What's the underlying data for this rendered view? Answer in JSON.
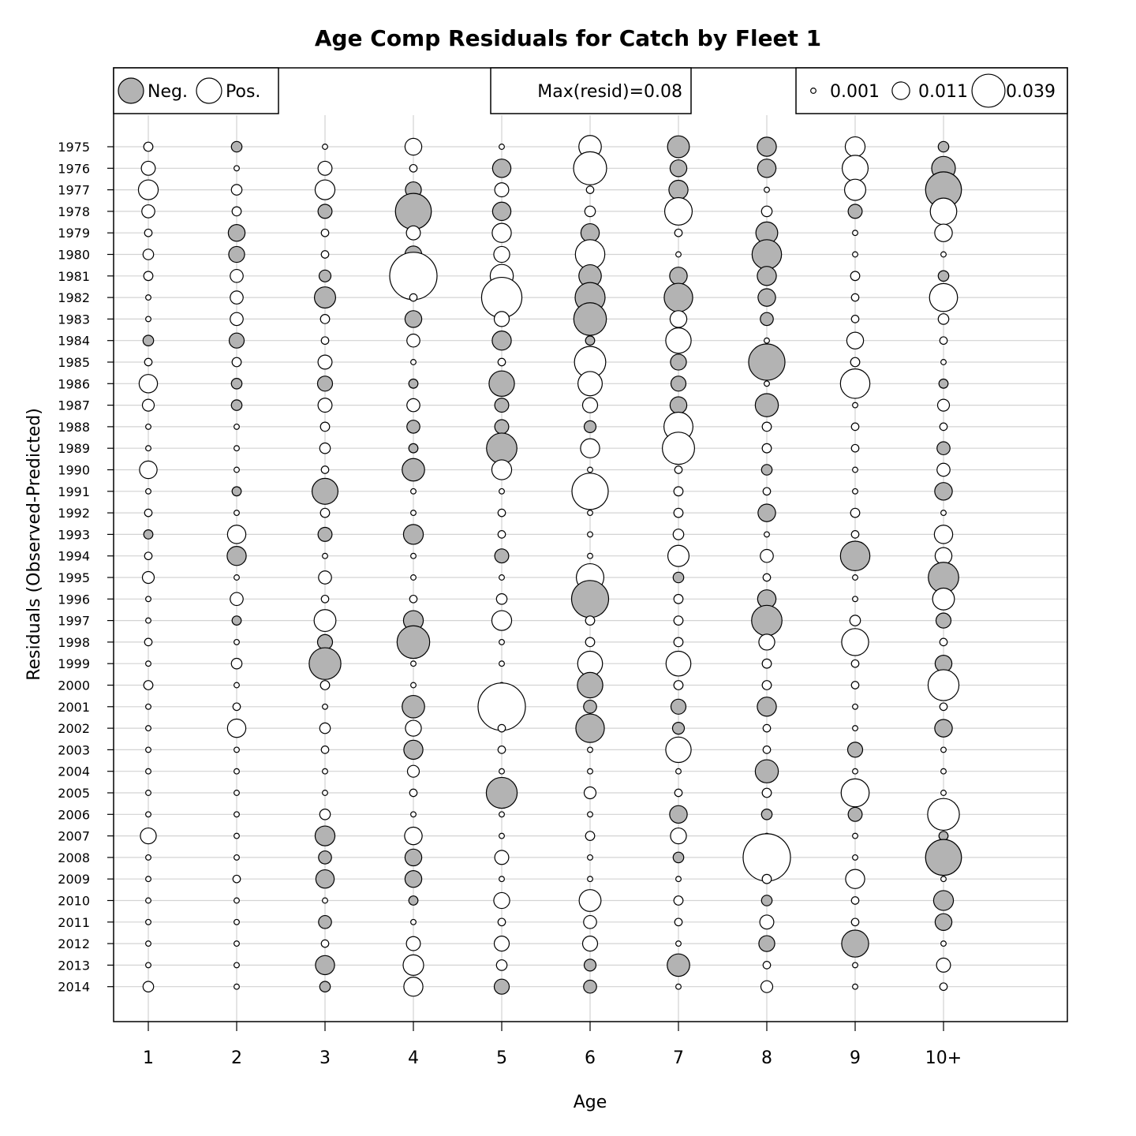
{
  "chart_data": {
    "type": "bubble",
    "title": "Age Comp Residuals for Catch by Fleet 1",
    "xlabel": "Age",
    "ylabel": "Residuals (Observed-Predicted)",
    "categories": [
      "1",
      "2",
      "3",
      "4",
      "5",
      "6",
      "7",
      "8",
      "9",
      "10+"
    ],
    "years": [
      "1975",
      "1976",
      "1977",
      "1978",
      "1979",
      "1980",
      "1981",
      "1982",
      "1983",
      "1984",
      "1985",
      "1986",
      "1987",
      "1988",
      "1989",
      "1990",
      "1991",
      "1992",
      "1993",
      "1994",
      "1995",
      "1996",
      "1997",
      "1998",
      "1999",
      "2000",
      "2001",
      "2002",
      "2003",
      "2004",
      "2005",
      "2006",
      "2007",
      "2008",
      "2009",
      "2010",
      "2011",
      "2012",
      "2013",
      "2014"
    ],
    "grid": true,
    "legend_sign": {
      "neg_label": "Neg.",
      "pos_label": "Pos.",
      "neg_color": "#b3b3b3",
      "pos_color": "#ffffff"
    },
    "legend_max": "Max(resid)=0.08",
    "legend_sizes": [
      {
        "label": "0.001",
        "value": 0.001
      },
      {
        "label": "0.011",
        "value": 0.011
      },
      {
        "label": "0.039",
        "value": 0.039
      }
    ],
    "values": [
      [
        0.003,
        -0.004,
        0.001,
        0.01,
        0.001,
        0.018,
        -0.017,
        -0.013,
        0.014,
        -0.004
      ],
      [
        0.007,
        0.001,
        0.007,
        0.002,
        -0.012,
        0.039,
        -0.01,
        -0.012,
        0.024,
        -0.02
      ],
      [
        0.014,
        0.004,
        0.014,
        -0.009,
        0.007,
        0.002,
        -0.013,
        0.001,
        0.016,
        -0.046
      ],
      [
        0.006,
        0.003,
        -0.007,
        -0.046,
        -0.012,
        0.004,
        0.027,
        0.004,
        -0.007,
        0.025
      ],
      [
        0.002,
        -0.01,
        0.002,
        0.007,
        0.013,
        -0.012,
        0.002,
        -0.017,
        0.001,
        0.011
      ],
      [
        0.004,
        -0.009,
        0.002,
        -0.01,
        0.009,
        0.031,
        0.001,
        -0.031,
        0.001,
        0.001
      ],
      [
        0.003,
        0.006,
        -0.005,
        0.08,
        0.019,
        -0.018,
        -0.011,
        -0.013,
        0.003,
        -0.004
      ],
      [
        0.001,
        0.006,
        -0.016,
        0.002,
        0.058,
        -0.032,
        -0.029,
        -0.011,
        0.002,
        0.028
      ],
      [
        0.001,
        0.006,
        0.003,
        -0.01,
        0.008,
        -0.038,
        0.01,
        -0.006,
        0.002,
        0.004
      ],
      [
        -0.004,
        -0.008,
        0.002,
        0.006,
        -0.013,
        -0.003,
        0.023,
        0.001,
        0.01,
        0.002
      ],
      [
        0.002,
        0.003,
        0.007,
        0.001,
        0.002,
        0.035,
        -0.009,
        -0.047,
        0.003,
        0.001
      ],
      [
        0.012,
        -0.004,
        -0.008,
        -0.003,
        -0.023,
        0.021,
        -0.008,
        0.001,
        0.031,
        -0.003
      ],
      [
        0.005,
        -0.004,
        0.007,
        0.006,
        -0.007,
        0.008,
        -0.01,
        -0.019,
        0.001,
        0.005
      ],
      [
        0.001,
        0.001,
        0.003,
        -0.006,
        -0.007,
        -0.005,
        0.03,
        0.003,
        0.002,
        0.002
      ],
      [
        0.001,
        0.001,
        0.004,
        -0.003,
        -0.033,
        0.013,
        0.037,
        0.003,
        0.002,
        -0.006
      ],
      [
        0.011,
        0.001,
        0.002,
        -0.018,
        0.014,
        0.001,
        0.002,
        -0.004,
        0.001,
        0.006
      ],
      [
        0.001,
        -0.003,
        -0.024,
        0.001,
        0.001,
        0.047,
        0.003,
        0.002,
        0.001,
        -0.011
      ],
      [
        0.002,
        0.001,
        0.003,
        0.001,
        0.002,
        0.001,
        0.003,
        -0.011,
        0.003,
        0.001
      ],
      [
        -0.003,
        0.012,
        -0.007,
        -0.014,
        0.002,
        0.001,
        0.004,
        0.001,
        0.002,
        0.012
      ],
      [
        0.002,
        -0.013,
        0.001,
        0.001,
        -0.007,
        0.001,
        0.016,
        0.006,
        -0.031,
        0.01
      ],
      [
        0.005,
        0.001,
        0.006,
        0.001,
        0.001,
        0.027,
        -0.004,
        0.002,
        0.001,
        -0.033
      ],
      [
        0.001,
        0.006,
        0.002,
        0.002,
        0.004,
        -0.049,
        0.003,
        -0.012,
        0.001,
        0.017
      ],
      [
        0.001,
        -0.003,
        0.017,
        -0.014,
        0.014,
        0.003,
        0.003,
        -0.033,
        0.004,
        -0.008
      ],
      [
        0.002,
        0.001,
        -0.008,
        -0.038,
        0.001,
        0.003,
        0.003,
        0.009,
        0.026,
        0.002
      ],
      [
        0.001,
        0.004,
        -0.036,
        0.001,
        0.001,
        0.022,
        0.022,
        0.003,
        0.002,
        -0.01
      ],
      [
        0.003,
        0.001,
        0.003,
        0.001,
        0.001,
        -0.023,
        0.003,
        0.003,
        0.002,
        0.034
      ],
      [
        0.001,
        0.002,
        0.001,
        -0.018,
        0.08,
        -0.006,
        -0.008,
        -0.013,
        0.001,
        0.002
      ],
      [
        0.001,
        0.012,
        0.004,
        0.009,
        0.002,
        -0.029,
        -0.005,
        0.002,
        0.001,
        -0.011
      ],
      [
        0.001,
        0.001,
        0.002,
        -0.013,
        0.002,
        0.001,
        0.023,
        0.002,
        -0.008,
        0.001
      ],
      [
        0.001,
        0.001,
        0.001,
        0.005,
        0.001,
        0.001,
        0.001,
        -0.019,
        0.001,
        0.001
      ],
      [
        0.001,
        0.001,
        0.001,
        0.002,
        -0.034,
        0.005,
        0.002,
        0.003,
        0.028,
        0.001
      ],
      [
        0.001,
        0.001,
        0.004,
        0.001,
        0.001,
        0.001,
        -0.011,
        -0.004,
        -0.007,
        0.036
      ],
      [
        0.009,
        0.001,
        -0.014,
        0.011,
        0.001,
        0.003,
        0.009,
        0.001,
        0.001,
        -0.003
      ],
      [
        0.001,
        0.001,
        -0.006,
        -0.01,
        0.007,
        0.001,
        -0.004,
        0.08,
        0.001,
        -0.046
      ],
      [
        0.001,
        0.002,
        -0.012,
        -0.01,
        0.001,
        0.001,
        0.001,
        0.003,
        0.013,
        0.001
      ],
      [
        0.001,
        0.001,
        0.001,
        -0.003,
        0.009,
        0.017,
        0.003,
        -0.004,
        0.002,
        -0.014
      ],
      [
        0.001,
        0.001,
        -0.006,
        0.001,
        0.002,
        0.006,
        0.002,
        0.007,
        0.002,
        -0.01
      ],
      [
        0.001,
        0.001,
        0.002,
        0.007,
        0.008,
        0.008,
        0.001,
        -0.009,
        -0.026,
        0.001
      ],
      [
        0.001,
        0.001,
        -0.013,
        0.015,
        0.004,
        -0.005,
        -0.018,
        0.002,
        0.001,
        0.007
      ],
      [
        0.004,
        0.001,
        -0.004,
        0.013,
        -0.008,
        -0.006,
        0.001,
        0.005,
        0.001,
        0.002
      ]
    ]
  }
}
